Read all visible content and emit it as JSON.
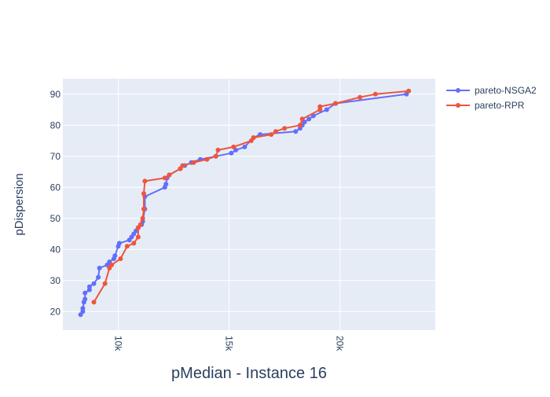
{
  "chart_data": {
    "type": "scatter",
    "xlabel": "pMedian - Instance 16",
    "ylabel": "pDispersion",
    "xlim": [
      7500,
      24300
    ],
    "ylim": [
      14,
      95
    ],
    "x_ticks": [
      10000,
      15000,
      20000
    ],
    "x_tick_labels": [
      "10k",
      "15k",
      "20k"
    ],
    "y_ticks": [
      20,
      30,
      40,
      50,
      60,
      70,
      80,
      90
    ],
    "y_tick_labels": [
      "20",
      "30",
      "40",
      "50",
      "60",
      "70",
      "80",
      "90"
    ],
    "grid": true,
    "legend_position": "top-right",
    "plot_background": "#E5ECF6",
    "series": [
      {
        "name": "pareto-NSGA2",
        "color": "#636EFA",
        "mode": "lines+markers",
        "points": [
          [
            8300,
            19
          ],
          [
            8400,
            20
          ],
          [
            8400,
            21
          ],
          [
            8450,
            23
          ],
          [
            8500,
            24
          ],
          [
            8500,
            26
          ],
          [
            8700,
            27
          ],
          [
            8700,
            28
          ],
          [
            8900,
            29
          ],
          [
            9100,
            31
          ],
          [
            9150,
            34
          ],
          [
            9500,
            35
          ],
          [
            9600,
            36
          ],
          [
            9800,
            37
          ],
          [
            9850,
            38
          ],
          [
            10000,
            41
          ],
          [
            10050,
            42
          ],
          [
            10500,
            43
          ],
          [
            10600,
            44
          ],
          [
            10700,
            45
          ],
          [
            10800,
            46
          ],
          [
            10900,
            47
          ],
          [
            11050,
            48
          ],
          [
            11100,
            49
          ],
          [
            11200,
            53
          ],
          [
            11200,
            57
          ],
          [
            12100,
            60
          ],
          [
            12150,
            61
          ],
          [
            12200,
            63
          ],
          [
            12300,
            64
          ],
          [
            12800,
            66
          ],
          [
            13000,
            67
          ],
          [
            13300,
            68
          ],
          [
            13700,
            69
          ],
          [
            14400,
            70
          ],
          [
            15100,
            71
          ],
          [
            15300,
            72
          ],
          [
            15700,
            73
          ],
          [
            16100,
            76
          ],
          [
            16400,
            77
          ],
          [
            18000,
            78
          ],
          [
            18200,
            79
          ],
          [
            18300,
            80
          ],
          [
            18400,
            81
          ],
          [
            18600,
            82
          ],
          [
            18800,
            83
          ],
          [
            19400,
            85
          ],
          [
            19800,
            87
          ],
          [
            23000,
            90
          ]
        ]
      },
      {
        "name": "pareto-RPR",
        "color": "#EF553B",
        "mode": "lines+markers",
        "points": [
          [
            8900,
            23
          ],
          [
            9400,
            29
          ],
          [
            9600,
            34
          ],
          [
            9700,
            35
          ],
          [
            10100,
            37
          ],
          [
            10400,
            41
          ],
          [
            10700,
            42
          ],
          [
            10900,
            44
          ],
          [
            10900,
            47
          ],
          [
            11000,
            48
          ],
          [
            11100,
            50
          ],
          [
            11150,
            53
          ],
          [
            11150,
            58
          ],
          [
            11200,
            62
          ],
          [
            12100,
            63
          ],
          [
            12300,
            64
          ],
          [
            12800,
            66
          ],
          [
            12900,
            67
          ],
          [
            13400,
            68
          ],
          [
            14000,
            69
          ],
          [
            14400,
            70
          ],
          [
            14500,
            72
          ],
          [
            15200,
            73
          ],
          [
            16000,
            75
          ],
          [
            16100,
            76
          ],
          [
            16900,
            77
          ],
          [
            17100,
            78
          ],
          [
            17500,
            79
          ],
          [
            18200,
            80
          ],
          [
            18300,
            82
          ],
          [
            19100,
            85
          ],
          [
            19100,
            86
          ],
          [
            19800,
            87
          ],
          [
            20900,
            89
          ],
          [
            21600,
            90
          ],
          [
            23100,
            91
          ]
        ]
      }
    ]
  }
}
